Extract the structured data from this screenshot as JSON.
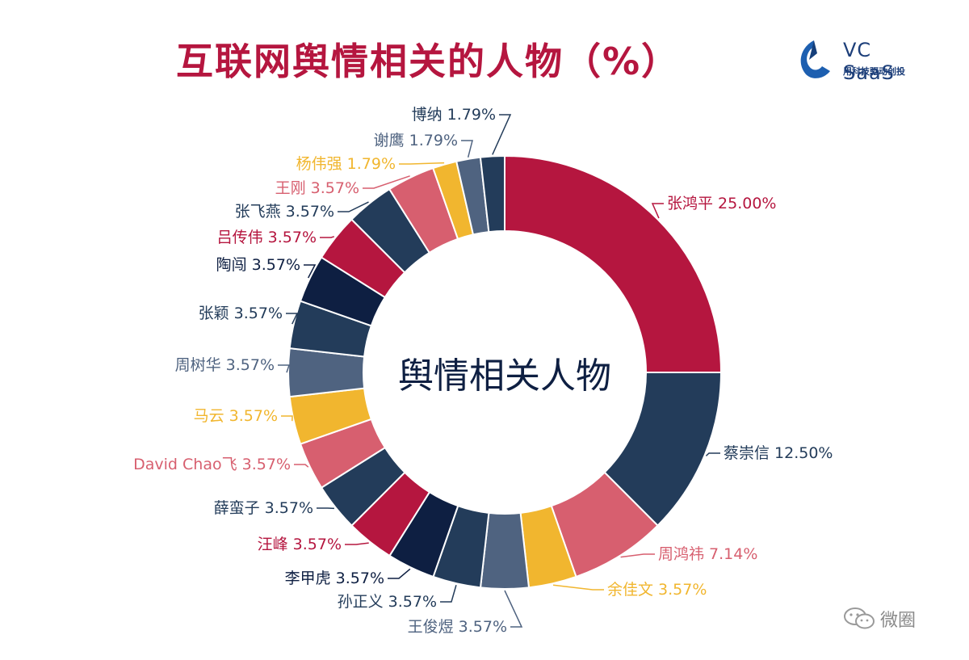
{
  "title": "互联网舆情相关的人物（%）",
  "logo": {
    "brand": "VC SaaS",
    "tagline": "用科技驱动创投"
  },
  "watermark": {
    "text": "微圈",
    "icon": "wechat-bubble-icon"
  },
  "colors": {
    "crimson": "#b5163f",
    "navy": "#233c5a",
    "pink": "#d75f6f",
    "gold": "#f1b62f",
    "darknavy": "#0e1f42",
    "slate": "#4f6380"
  },
  "chart_data": {
    "type": "pie",
    "center_label": "舆情相关人物",
    "slices": [
      {
        "label": "张鸿平",
        "value": 25.0,
        "display": "25.00%",
        "color": "#b5163f"
      },
      {
        "label": "蔡崇信",
        "value": 12.5,
        "display": "12.50%",
        "color": "#233c5a"
      },
      {
        "label": "周鸿祎",
        "value": 7.14,
        "display": "7.14%",
        "color": "#d75f6f"
      },
      {
        "label": "余佳文",
        "value": 3.57,
        "display": "3.57%",
        "color": "#f1b62f"
      },
      {
        "label": "王俊煜",
        "value": 3.57,
        "display": "3.57%",
        "color": "#4f6380"
      },
      {
        "label": "孙正义",
        "value": 3.57,
        "display": "3.57%",
        "color": "#233c5a"
      },
      {
        "label": "李甲虎",
        "value": 3.57,
        "display": "3.57%",
        "color": "#0e1f42"
      },
      {
        "label": "汪峰",
        "value": 3.57,
        "display": "3.57%",
        "color": "#b5163f"
      },
      {
        "label": "薛蛮子",
        "value": 3.57,
        "display": "3.57%",
        "color": "#233c5a"
      },
      {
        "label": "David Chao飞",
        "value": 3.57,
        "display": "3.57%",
        "color": "#d75f6f"
      },
      {
        "label": "马云",
        "value": 3.57,
        "display": "3.57%",
        "color": "#f1b62f"
      },
      {
        "label": "周树华",
        "value": 3.57,
        "display": "3.57%",
        "color": "#4f6380"
      },
      {
        "label": "张颖",
        "value": 3.57,
        "display": "3.57%",
        "color": "#233c5a"
      },
      {
        "label": "陶闯",
        "value": 3.57,
        "display": "3.57%",
        "color": "#0e1f42"
      },
      {
        "label": "吕传伟",
        "value": 3.57,
        "display": "3.57%",
        "color": "#b5163f"
      },
      {
        "label": "张飞燕",
        "value": 3.57,
        "display": "3.57%",
        "color": "#233c5a"
      },
      {
        "label": "王刚",
        "value": 3.57,
        "display": "3.57%",
        "color": "#d75f6f"
      },
      {
        "label": "杨伟强",
        "value": 1.79,
        "display": "1.79%",
        "color": "#f1b62f"
      },
      {
        "label": "谢鹰",
        "value": 1.79,
        "display": "1.79%",
        "color": "#4f6380"
      },
      {
        "label": "博纳",
        "value": 1.79,
        "display": "1.79%",
        "color": "#233c5a"
      }
    ]
  }
}
